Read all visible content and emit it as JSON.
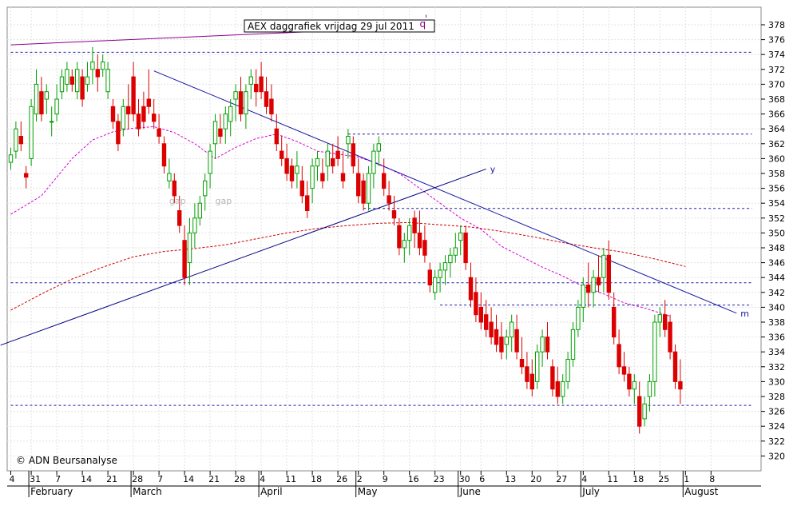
{
  "chart_data": {
    "type": "candlestick",
    "title": "AEX daggrafiek vrijdag 29 jul 2011",
    "copyright": "© ADN Beursanalyse",
    "ylim": [
      318,
      379
    ],
    "yticks": [
      320,
      322,
      324,
      326,
      328,
      330,
      332,
      334,
      336,
      338,
      340,
      342,
      344,
      346,
      348,
      350,
      352,
      354,
      356,
      358,
      360,
      362,
      364,
      366,
      368,
      370,
      372,
      374,
      376,
      378
    ],
    "day_ticks": [
      {
        "label": "4",
        "i": 0
      },
      {
        "label": "31",
        "i": 4
      },
      {
        "label": "7",
        "i": 9
      },
      {
        "label": "14",
        "i": 14
      },
      {
        "label": "21",
        "i": 19
      },
      {
        "label": "28",
        "i": 24
      },
      {
        "label": "7",
        "i": 29
      },
      {
        "label": "14",
        "i": 34
      },
      {
        "label": "21",
        "i": 39
      },
      {
        "label": "28",
        "i": 44
      },
      {
        "label": "4",
        "i": 49
      },
      {
        "label": "11",
        "i": 54
      },
      {
        "label": "18",
        "i": 59
      },
      {
        "label": "26",
        "i": 64
      },
      {
        "label": "2",
        "i": 68
      },
      {
        "label": "9",
        "i": 73
      },
      {
        "label": "16",
        "i": 78
      },
      {
        "label": "23",
        "i": 83
      },
      {
        "label": "30",
        "i": 88
      },
      {
        "label": "6",
        "i": 92
      },
      {
        "label": "13",
        "i": 97
      },
      {
        "label": "20",
        "i": 102
      },
      {
        "label": "27",
        "i": 107
      },
      {
        "label": "4",
        "i": 112
      },
      {
        "label": "11",
        "i": 117
      },
      {
        "label": "18",
        "i": 122
      },
      {
        "label": "25",
        "i": 127
      },
      {
        "label": "1",
        "i": 132
      },
      {
        "label": "8",
        "i": 137
      }
    ],
    "month_labels": [
      {
        "label": "February",
        "i": 4
      },
      {
        "label": "March",
        "i": 24
      },
      {
        "label": "April",
        "i": 49
      },
      {
        "label": "May",
        "i": 68
      },
      {
        "label": "June",
        "i": 88
      },
      {
        "label": "July",
        "i": 112
      },
      {
        "label": "August",
        "i": 132
      }
    ],
    "candles": [
      [
        359.5,
        361.5,
        358.5,
        360.5
      ],
      [
        361,
        365,
        360,
        364
      ],
      [
        363,
        365,
        361,
        362
      ],
      [
        358,
        359,
        356,
        357.5
      ],
      [
        360,
        368,
        359,
        367
      ],
      [
        366,
        372,
        365,
        370
      ],
      [
        369,
        371,
        365,
        366
      ],
      [
        368,
        370,
        366,
        369
      ],
      [
        365,
        367,
        363,
        365
      ],
      [
        366,
        370,
        365,
        368
      ],
      [
        369,
        372,
        368,
        371
      ],
      [
        370,
        373,
        369,
        372
      ],
      [
        371,
        372,
        369,
        370
      ],
      [
        369,
        373,
        368,
        372
      ],
      [
        371,
        372,
        367,
        368
      ],
      [
        370,
        373,
        369,
        371
      ],
      [
        372,
        375,
        370,
        373
      ],
      [
        372,
        374,
        369,
        371
      ],
      [
        372,
        374,
        371,
        373
      ],
      [
        369,
        373,
        368,
        372
      ],
      [
        367,
        368,
        364,
        365
      ],
      [
        365,
        366,
        361,
        362
      ],
      [
        364,
        368,
        363,
        367
      ],
      [
        367,
        370,
        364,
        366
      ],
      [
        371,
        373,
        365,
        366
      ],
      [
        366,
        368,
        363,
        364
      ],
      [
        367,
        369,
        364,
        365
      ],
      [
        368,
        372,
        366,
        367
      ],
      [
        366,
        368,
        364,
        365
      ],
      [
        364,
        366,
        362,
        363
      ],
      [
        362,
        363,
        358,
        359
      ],
      [
        357,
        360,
        356,
        358
      ],
      [
        357,
        358,
        354,
        355
      ],
      [
        353,
        355,
        350,
        351
      ],
      [
        349,
        351,
        343,
        344
      ],
      [
        346,
        352,
        343,
        350
      ],
      [
        350,
        354,
        348,
        352
      ],
      [
        352,
        355,
        351,
        354
      ],
      [
        355,
        358,
        353,
        357
      ],
      [
        358,
        362,
        356,
        361
      ],
      [
        362,
        366,
        360,
        365
      ],
      [
        364,
        366,
        362,
        363
      ],
      [
        364,
        367,
        362,
        366
      ],
      [
        365,
        368,
        363,
        367
      ],
      [
        368,
        370,
        365,
        369
      ],
      [
        369,
        371,
        365,
        366
      ],
      [
        366,
        370,
        364,
        369
      ],
      [
        370,
        372,
        368,
        371
      ],
      [
        370,
        372,
        367,
        369
      ],
      [
        371,
        373,
        368,
        369
      ],
      [
        369,
        371,
        366,
        367
      ],
      [
        368,
        370,
        365,
        366
      ],
      [
        364,
        366,
        361,
        362
      ],
      [
        361,
        363,
        359,
        360
      ],
      [
        360,
        362,
        357,
        358
      ],
      [
        359,
        360,
        356,
        357
      ],
      [
        358,
        361,
        356,
        359
      ],
      [
        357,
        359,
        354,
        355
      ],
      [
        355,
        357,
        352,
        353
      ],
      [
        356,
        360,
        354,
        359
      ],
      [
        359,
        361,
        357,
        360
      ],
      [
        358,
        360,
        356,
        357
      ],
      [
        359,
        362,
        357,
        361
      ],
      [
        360,
        362,
        358,
        359
      ],
      [
        361,
        363,
        359,
        360
      ],
      [
        358,
        361,
        356,
        357
      ],
      [
        362,
        364,
        360,
        363
      ],
      [
        362,
        363,
        358,
        359
      ],
      [
        358,
        360,
        354,
        355
      ],
      [
        357,
        358,
        353,
        354
      ],
      [
        354,
        359,
        353,
        358
      ],
      [
        358,
        362,
        356,
        361
      ],
      [
        361,
        363,
        359,
        362
      ],
      [
        358,
        360,
        355,
        356
      ],
      [
        355,
        357,
        353,
        354
      ],
      [
        353,
        355,
        351,
        352
      ],
      [
        351,
        352,
        347,
        348
      ],
      [
        348,
        350,
        346,
        349
      ],
      [
        349,
        352,
        347,
        351
      ],
      [
        352,
        353,
        348,
        350
      ],
      [
        350,
        353,
        347,
        348
      ],
      [
        349,
        351,
        346,
        347
      ],
      [
        345,
        346,
        342,
        343
      ],
      [
        342,
        345,
        341,
        344
      ],
      [
        344,
        346,
        342,
        345
      ],
      [
        345,
        347,
        343,
        346
      ],
      [
        346,
        348,
        344,
        347
      ],
      [
        347,
        350,
        346,
        348
      ],
      [
        349,
        351,
        347,
        350
      ],
      [
        350,
        351,
        345,
        346
      ],
      [
        344,
        346,
        340,
        341
      ],
      [
        342,
        344,
        338,
        339
      ],
      [
        340,
        342,
        337,
        338
      ],
      [
        339,
        341,
        336,
        337
      ],
      [
        338,
        340,
        335,
        336
      ],
      [
        337,
        339,
        334,
        335
      ],
      [
        336,
        338,
        333,
        334
      ],
      [
        335,
        337,
        333,
        336
      ],
      [
        336,
        339,
        334,
        338
      ],
      [
        337,
        339,
        333,
        334
      ],
      [
        333,
        336,
        331,
        332
      ],
      [
        332,
        334,
        329,
        330
      ],
      [
        331,
        333,
        328,
        329
      ],
      [
        330,
        335,
        329,
        334
      ],
      [
        334,
        337,
        332,
        336
      ],
      [
        336,
        338,
        333,
        334
      ],
      [
        332,
        333,
        328,
        329
      ],
      [
        330,
        332,
        327,
        328
      ],
      [
        328,
        331,
        327,
        330
      ],
      [
        330,
        334,
        329,
        333
      ],
      [
        333,
        338,
        332,
        337
      ],
      [
        337,
        341,
        336,
        340
      ],
      [
        340,
        344,
        338,
        343
      ],
      [
        343,
        346,
        340,
        342
      ],
      [
        342,
        345,
        340,
        344
      ],
      [
        344,
        347,
        342,
        343
      ],
      [
        344,
        348,
        342,
        347
      ],
      [
        347,
        349,
        341,
        342
      ],
      [
        340,
        342,
        335,
        336
      ],
      [
        335,
        337,
        331,
        332
      ],
      [
        332,
        334,
        330,
        331
      ],
      [
        331,
        332,
        328,
        329
      ],
      [
        329,
        331,
        327,
        330
      ],
      [
        328,
        330,
        323,
        324
      ],
      [
        325,
        328,
        324,
        327
      ],
      [
        328,
        331,
        326,
        330
      ],
      [
        330,
        339,
        328,
        338
      ],
      [
        338,
        340,
        336,
        339
      ],
      [
        339,
        341,
        336,
        337
      ],
      [
        338,
        339,
        333,
        334
      ],
      [
        334,
        335,
        329,
        330
      ],
      [
        330,
        333,
        327,
        329
      ]
    ],
    "ma_short": [
      [
        0,
        352.5
      ],
      [
        6,
        355
      ],
      [
        12,
        360
      ],
      [
        16,
        362.5
      ],
      [
        20,
        363.6
      ],
      [
        24,
        364.1
      ],
      [
        28,
        364.3
      ],
      [
        32,
        363.5
      ],
      [
        36,
        362
      ],
      [
        40,
        360
      ],
      [
        44,
        361.5
      ],
      [
        48,
        362.7
      ],
      [
        52,
        363.3
      ],
      [
        56,
        362.3
      ],
      [
        60,
        361
      ],
      [
        64,
        360.6
      ],
      [
        68,
        360.2
      ],
      [
        72,
        359.3
      ],
      [
        76,
        358
      ],
      [
        80,
        356
      ],
      [
        84,
        354
      ],
      [
        88,
        352
      ],
      [
        92,
        350.5
      ],
      [
        96,
        348.2
      ],
      [
        100,
        346.8
      ],
      [
        104,
        345.4
      ],
      [
        108,
        344.2
      ],
      [
        112,
        342.8
      ],
      [
        116,
        341.8
      ],
      [
        120,
        340.6
      ],
      [
        124,
        339.9
      ],
      [
        129,
        338.8
      ]
    ],
    "ma_long": [
      [
        0,
        339.6
      ],
      [
        6,
        341.8
      ],
      [
        12,
        343.8
      ],
      [
        18,
        345.4
      ],
      [
        24,
        346.8
      ],
      [
        30,
        347.5
      ],
      [
        36,
        347.9
      ],
      [
        42,
        348.4
      ],
      [
        48,
        349.2
      ],
      [
        54,
        350
      ],
      [
        60,
        350.6
      ],
      [
        66,
        351
      ],
      [
        72,
        351.3
      ],
      [
        78,
        351.4
      ],
      [
        84,
        351.1
      ],
      [
        90,
        350.8
      ],
      [
        96,
        350.2
      ],
      [
        102,
        349.5
      ],
      [
        108,
        348.7
      ],
      [
        114,
        348
      ],
      [
        120,
        347.4
      ],
      [
        126,
        346.5
      ],
      [
        132,
        345.5
      ]
    ],
    "hlines": [
      {
        "y": 374.3,
        "i1": 0,
        "i2": 145
      },
      {
        "y": 363.3,
        "i1": 66,
        "i2": 145
      },
      {
        "y": 353.3,
        "i1": 69,
        "i2": 145
      },
      {
        "y": 343.3,
        "i1": 0,
        "i2": 145
      },
      {
        "y": 340.3,
        "i1": 84,
        "i2": 145
      },
      {
        "y": 326.8,
        "i1": 0,
        "i2": 145
      }
    ],
    "trendlines": [
      {
        "p1": [
          0,
          375.3
        ],
        "p2": [
          79,
          377.7
        ]
      },
      {
        "p1": [
          28,
          371.8
        ],
        "p2": [
          142,
          339.2
        ],
        "label": "m"
      },
      {
        "p1": [
          -2,
          334.9
        ],
        "p2": [
          93,
          358.6
        ],
        "label": "y"
      }
    ],
    "annotations": [
      {
        "text": "gap",
        "i": 31,
        "y": 353.9
      },
      {
        "text": "gap",
        "i": 40,
        "y": 353.9
      },
      {
        "text": "q",
        "i": 80,
        "y": 377.7
      },
      {
        "text": "'",
        "i": 81,
        "y": 378.4
      }
    ]
  }
}
